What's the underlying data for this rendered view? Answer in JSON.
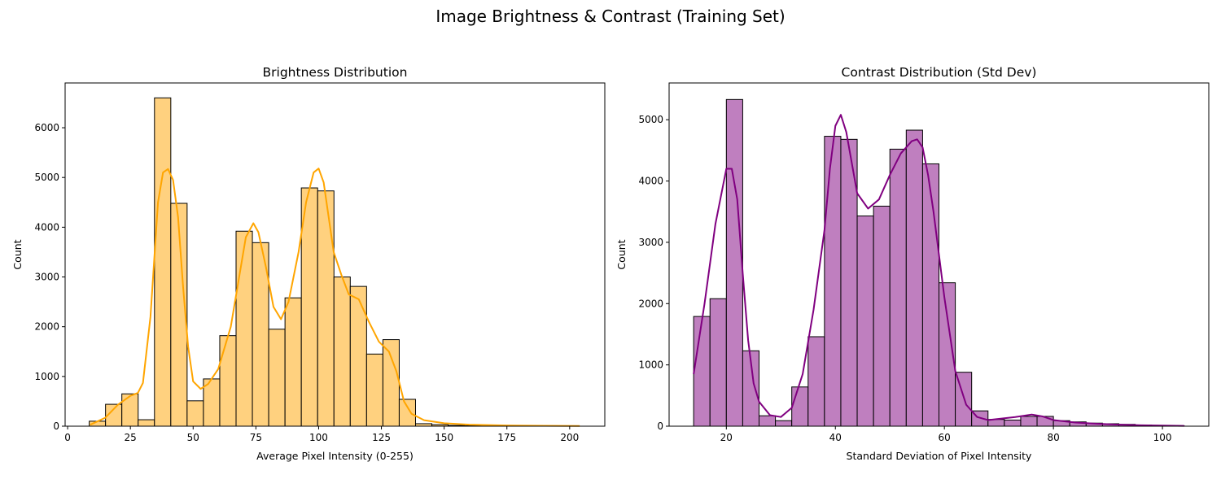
{
  "suptitle": "Image Brightness & Contrast (Training Set)",
  "chart_data": [
    {
      "type": "bar",
      "subtype": "histogram-with-kde",
      "title": "Brightness Distribution",
      "xlabel": "Average Pixel Intensity (0-255)",
      "ylabel": "Count",
      "xlim": [
        -1,
        214
      ],
      "ylim": [
        0,
        6900
      ],
      "xticks": [
        0,
        25,
        50,
        75,
        100,
        125,
        150,
        175,
        200
      ],
      "yticks": [
        0,
        1000,
        2000,
        3000,
        4000,
        5000,
        6000
      ],
      "bar_color": "#ffd17f",
      "kde_color": "#ffa500",
      "bin_edges": [
        8.6,
        15.1,
        21.6,
        28.1,
        34.6,
        41.1,
        47.6,
        54.1,
        60.6,
        67.1,
        73.6,
        80.1,
        86.6,
        93.1,
        99.6,
        106.1,
        112.6,
        119.1,
        125.6,
        132.1,
        138.6,
        145.1,
        151.6,
        158.1,
        164.6,
        171.1,
        177.6,
        184.1,
        190.6,
        197.1,
        203.6
      ],
      "counts": [
        100,
        440,
        650,
        130,
        6600,
        4480,
        510,
        950,
        1820,
        3920,
        3690,
        1950,
        2580,
        4790,
        4730,
        3000,
        2810,
        1450,
        1740,
        540,
        50,
        30,
        15,
        10,
        5,
        3,
        2,
        1,
        1,
        1
      ],
      "kde": {
        "x": [
          9,
          15,
          20,
          25,
          28,
          30,
          33,
          36,
          38,
          40,
          42,
          44,
          46,
          48,
          50,
          53,
          56,
          60,
          65,
          68,
          71,
          74,
          76,
          79,
          82,
          85,
          88,
          92,
          95,
          98,
          100,
          102,
          104,
          106,
          109,
          112,
          116,
          120,
          124,
          128,
          131,
          134,
          137,
          142,
          150,
          160,
          175,
          190,
          204
        ],
        "y": [
          30,
          170,
          430,
          610,
          670,
          870,
          2200,
          4500,
          5100,
          5170,
          4950,
          4200,
          2800,
          1600,
          900,
          750,
          850,
          1150,
          2000,
          2900,
          3800,
          4080,
          3900,
          3200,
          2400,
          2150,
          2500,
          3500,
          4500,
          5100,
          5180,
          4900,
          4200,
          3500,
          3050,
          2650,
          2550,
          2100,
          1700,
          1500,
          1100,
          500,
          250,
          120,
          60,
          30,
          15,
          8,
          5
        ]
      }
    },
    {
      "type": "bar",
      "subtype": "histogram-with-kde",
      "title": "Contrast Distribution (Std Dev)",
      "xlabel": "Standard Deviation of Pixel Intensity",
      "ylabel": "Count",
      "xlim": [
        9.5,
        108.5
      ],
      "ylim": [
        0,
        5600
      ],
      "xticks": [
        20,
        40,
        60,
        80,
        100
      ],
      "yticks": [
        0,
        1000,
        2000,
        3000,
        4000,
        5000
      ],
      "bar_color": "#bf7fbf",
      "kde_color": "#800080",
      "bin_edges": [
        14.0,
        17.0,
        20.0,
        23.0,
        26.0,
        29.0,
        32.0,
        35.0,
        38.0,
        41.0,
        44.0,
        47.0,
        50.0,
        53.0,
        56.0,
        59.0,
        62.0,
        65.0,
        68.0,
        71.0,
        74.0,
        77.0,
        80.0,
        83.0,
        86.0,
        89.0,
        92.0,
        95.0,
        98.0,
        101.0,
        104.0
      ],
      "counts": [
        1790,
        2080,
        5330,
        1230,
        170,
        90,
        640,
        1460,
        4730,
        4680,
        3430,
        3590,
        4520,
        4830,
        4280,
        2340,
        880,
        250,
        110,
        100,
        160,
        160,
        90,
        70,
        50,
        40,
        30,
        20,
        10,
        5
      ],
      "kde": {
        "x": [
          14,
          16,
          18,
          20,
          21,
          22,
          23,
          24,
          25,
          26,
          28,
          30,
          32,
          34,
          36,
          38,
          39,
          40,
          41,
          42,
          43,
          44,
          46,
          48,
          50,
          52,
          54,
          55,
          56,
          57,
          58,
          60,
          62,
          64,
          66,
          68,
          70,
          73,
          76,
          78,
          80,
          84,
          88,
          92,
          96,
          100,
          104
        ],
        "y": [
          850,
          2000,
          3300,
          4200,
          4200,
          3700,
          2500,
          1400,
          700,
          400,
          180,
          150,
          300,
          850,
          1900,
          3200,
          4200,
          4900,
          5080,
          4800,
          4300,
          3800,
          3550,
          3700,
          4100,
          4450,
          4650,
          4680,
          4550,
          4100,
          3500,
          2100,
          900,
          350,
          150,
          100,
          120,
          150,
          190,
          160,
          100,
          60,
          40,
          25,
          15,
          10,
          5
        ]
      }
    }
  ]
}
